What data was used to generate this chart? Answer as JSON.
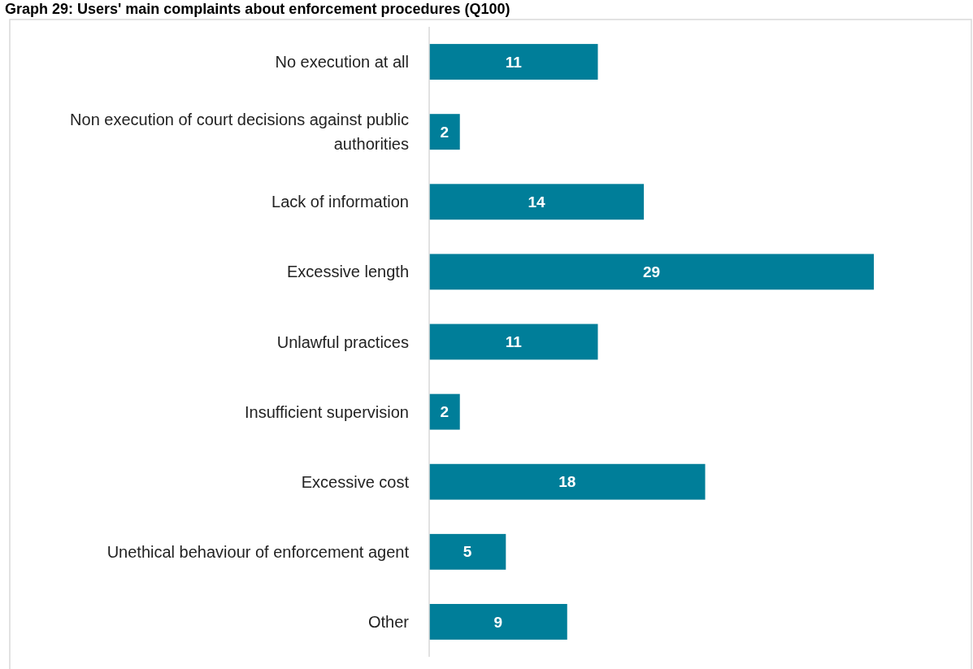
{
  "chart_data": {
    "type": "bar",
    "orientation": "horizontal",
    "title": "Graph 29: Users' main complaints about enforcement procedures (Q100)",
    "categories": [
      "No execution at all",
      "Non execution of court decisions against public authorities",
      "Lack of information",
      "Excessive length",
      "Unlawful practices",
      "Insufficient supervision",
      "Excessive cost",
      "Unethical behaviour of enforcement agent",
      "Other"
    ],
    "values": [
      11,
      2,
      14,
      29,
      11,
      2,
      18,
      5,
      9
    ],
    "color": "#007e99",
    "data_labels": true
  }
}
